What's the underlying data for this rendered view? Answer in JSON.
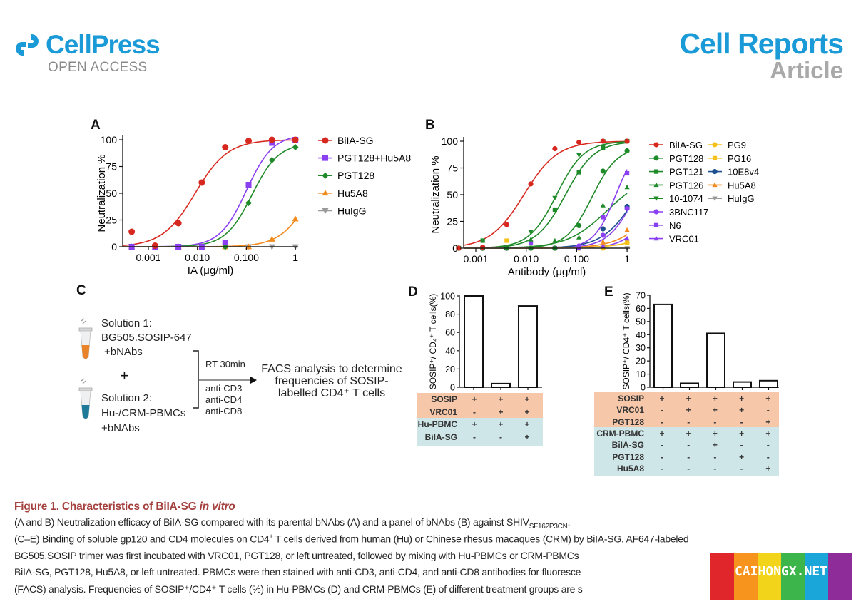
{
  "header": {
    "publisher": "CellPress",
    "publisher_sub": "OPEN ACCESS",
    "journal": "Cell Reports",
    "article_type": "Article",
    "brand_color": "#1a9ad6"
  },
  "panels": {
    "A": "A",
    "B": "B",
    "C": "C",
    "D": "D",
    "E": "E"
  },
  "panel_c": {
    "solution1": [
      "Solution 1:",
      "BG505.SOSIP-647",
      "+bNAbs"
    ],
    "plus": "+",
    "solution2": [
      "Solution 2:",
      "Hu-/CRM-PBMCs",
      "+bNAbs"
    ],
    "incubation": "RT 30min",
    "stains": [
      "anti-CD3",
      "anti-CD4",
      "anti-CD8"
    ],
    "result": [
      "FACS analysis to determine",
      "frequencies of SOSIP-",
      "labelled CD4⁺ T cells"
    ],
    "tube_colors": [
      "#e8832a",
      "#1f7a9a"
    ]
  },
  "chart_data": [
    {
      "id": "A",
      "type": "line",
      "xscale": "log",
      "xlabel": "IA (μg/ml)",
      "ylabel": "Neutralization %",
      "xticks": [
        0.001,
        0.01,
        0.1,
        1
      ],
      "xtick_labels": [
        "0.001",
        "0.010",
        "0.100",
        "1"
      ],
      "yticks": [
        0,
        25,
        50,
        75,
        100
      ],
      "ylim": [
        0,
        100
      ],
      "legend": "right",
      "x": [
        0.000457,
        0.00137,
        0.0041,
        0.0123,
        0.037,
        0.111,
        0.333,
        1
      ],
      "series": [
        {
          "name": "BiIA-SG",
          "color": "#d7281f",
          "marker": "circle",
          "values": [
            14,
            1,
            22,
            60,
            93,
            99,
            100,
            100
          ]
        },
        {
          "name": "PGT128+Hu5A8",
          "color": "#8a3ff0",
          "marker": "square",
          "values": [
            0,
            0,
            0,
            0,
            4,
            58,
            97,
            100
          ]
        },
        {
          "name": "PGT128",
          "color": "#1f8a2a",
          "marker": "diamond",
          "values": [
            0,
            0,
            0,
            0,
            0,
            41,
            81,
            93
          ]
        },
        {
          "name": "Hu5A8",
          "color": "#f28a1c",
          "marker": "triangle-up",
          "values": [
            0,
            0,
            0,
            0,
            0,
            0,
            7,
            26
          ]
        },
        {
          "name": "HuIgG",
          "color": "#9a9a9a",
          "marker": "triangle-down",
          "values": [
            0,
            0,
            0,
            0,
            0,
            0,
            0,
            0
          ]
        }
      ]
    },
    {
      "id": "B",
      "type": "line",
      "xscale": "log",
      "xlabel": "Antibody (μg/ml)",
      "ylabel": "Neutralization %",
      "xticks": [
        0.001,
        0.01,
        0.1,
        1
      ],
      "xtick_labels": [
        "0.001",
        "0.010",
        "0.100",
        "1"
      ],
      "yticks": [
        0,
        25,
        50,
        75,
        100
      ],
      "ylim": [
        0,
        100
      ],
      "legend": "right",
      "x": [
        0.000457,
        0.00137,
        0.0041,
        0.0123,
        0.037,
        0.111,
        0.333,
        1
      ],
      "series": [
        {
          "name": "BiIA-SG",
          "color": "#d7281f",
          "marker": "circle",
          "values": [
            0,
            1,
            22,
            60,
            93,
            99,
            100,
            100
          ]
        },
        {
          "name": "PGT128",
          "color": "#1f8a2a",
          "marker": "circle",
          "values": [
            0,
            0,
            0,
            0,
            0,
            21,
            72,
            91
          ]
        },
        {
          "name": "PGT121",
          "color": "#1f8a2a",
          "marker": "square",
          "values": [
            0,
            7,
            0,
            0,
            36,
            71,
            94,
            100
          ]
        },
        {
          "name": "PGT126",
          "color": "#1f8a2a",
          "marker": "triangle-up",
          "values": [
            0,
            0,
            0,
            8,
            7,
            10,
            40,
            57
          ]
        },
        {
          "name": "10-1074",
          "color": "#1f8a2a",
          "marker": "triangle-down",
          "values": [
            0,
            0,
            0,
            15,
            47,
            87,
            100,
            100
          ]
        },
        {
          "name": "3BNC117",
          "color": "#8a3ff0",
          "marker": "circle",
          "values": [
            0,
            0,
            0,
            0,
            0,
            2,
            12,
            37
          ]
        },
        {
          "name": "N6",
          "color": "#8a3ff0",
          "marker": "square",
          "values": [
            0,
            0,
            0,
            5,
            0,
            0,
            29,
            70
          ]
        },
        {
          "name": "VRC01",
          "color": "#8a3ff0",
          "marker": "triangle-up",
          "values": [
            0,
            0,
            0,
            0,
            0,
            0,
            2,
            9
          ]
        },
        {
          "name": "PG9",
          "color": "#f5c21b",
          "marker": "circle",
          "values": [
            0,
            0,
            0,
            0,
            0,
            0,
            0,
            5
          ]
        },
        {
          "name": "PG16",
          "color": "#f5c21b",
          "marker": "square",
          "values": [
            0,
            0,
            7,
            0,
            0,
            0,
            0,
            5
          ]
        },
        {
          "name": "10E8v4",
          "color": "#1d4f8f",
          "marker": "circle",
          "values": [
            0,
            0,
            0,
            0,
            0,
            0,
            18,
            39
          ]
        },
        {
          "name": "Hu5A8",
          "color": "#f28a1c",
          "marker": "triangle-up",
          "values": [
            0,
            0,
            0,
            0,
            0,
            0,
            6,
            17
          ]
        },
        {
          "name": "HuIgG",
          "color": "#9a9a9a",
          "marker": "triangle-down",
          "values": [
            0,
            0,
            0,
            0,
            0,
            0,
            0,
            0
          ]
        }
      ]
    },
    {
      "id": "D",
      "type": "bar",
      "ylabel": "SOSIP⁺/ CD₄⁺ T cells(%)",
      "yticks": [
        0,
        20,
        40,
        60,
        80,
        100
      ],
      "ylim": [
        0,
        100
      ],
      "values": [
        100,
        4,
        89
      ],
      "table": {
        "rows": [
          {
            "label": "SOSIP",
            "group": "treatment",
            "cells": [
              "+",
              "+",
              "+"
            ]
          },
          {
            "label": "VRC01",
            "group": "treatment",
            "cells": [
              "-",
              "+",
              "+"
            ]
          },
          {
            "label": "Hu-PBMC",
            "group": "cells",
            "cells": [
              "+",
              "+",
              "+"
            ]
          },
          {
            "label": "BiIA-SG",
            "group": "cells",
            "cells": [
              "-",
              "-",
              "+"
            ]
          }
        ]
      }
    },
    {
      "id": "E",
      "type": "bar",
      "ylabel": "SOSIP⁺/ CD4⁺ T cells(%)",
      "yticks": [
        0,
        10,
        20,
        30,
        40,
        50,
        60,
        70
      ],
      "ylim": [
        0,
        70
      ],
      "values": [
        63,
        3,
        41,
        4,
        5
      ],
      "table": {
        "rows": [
          {
            "label": "SOSIP",
            "group": "treatment",
            "cells": [
              "+",
              "+",
              "+",
              "+",
              "+"
            ]
          },
          {
            "label": "VRC01",
            "group": "treatment",
            "cells": [
              "-",
              "+",
              "+",
              "+",
              "-"
            ]
          },
          {
            "label": "PGT128",
            "group": "treatment",
            "cells": [
              "-",
              "-",
              "-",
              "-",
              "+"
            ]
          },
          {
            "label": "CRM-PBMC",
            "group": "cells",
            "cells": [
              "+",
              "+",
              "+",
              "+",
              "+"
            ]
          },
          {
            "label": "BiIA-SG",
            "group": "cells",
            "cells": [
              "-",
              "-",
              "+",
              "-",
              "-"
            ]
          },
          {
            "label": "PGT128",
            "group": "cells",
            "cells": [
              "-",
              "-",
              "-",
              "+",
              "-"
            ]
          },
          {
            "label": "Hu5A8",
            "group": "cells",
            "cells": [
              "-",
              "-",
              "-",
              "-",
              "+"
            ]
          }
        ]
      }
    }
  ],
  "table_colors": {
    "treatment": "#f6c7a9",
    "cells": "#cfe6e8"
  },
  "caption": {
    "title_prefix": "Figure 1. Characteristics of BiIA-SG ",
    "title_italic": "in vitro",
    "line1": "(A and B) Neutralization efficacy of BiIA-SG compared with its parental bNAbs (A) and a panel of bNAbs (B) against SHIV",
    "line1_sub": "SF162P3CN",
    "line1_end": ".",
    "line2a": "(C–E) Binding of soluble gp120 and CD4 molecules on CD4",
    "line2_sup": "+",
    "line2b": " T cells derived from human (Hu) or Chinese rhesus macaques (CRM) by BiIA-SG. AF647-labeled",
    "line3": "BG505.SOSIP trimer was first incubated with VRC01, PGT128, or left untreated, followed by mixing with Hu-PBMCs or CRM-PBMCs",
    "line4": "BiIA-SG, PGT128, Hu5A8, or left untreated. PBMCs were then stained with anti-CD3, anti-CD4, and anti-CD8 antibodies for fluoresce",
    "line5": "(FACS) analysis. Frequencies of SOSIP⁺/CD4⁺ T cells (%) in Hu-PBMCs (D) and CRM-PBMCs (E) of different treatment groups are s",
    "title_color": "#a4403d"
  },
  "watermark": {
    "text": "CAIHONGX.NET",
    "colors": [
      "#e0262b",
      "#f7941d",
      "#f2d51b",
      "#3cb54a",
      "#1aa6d9",
      "#8e2d9a"
    ]
  }
}
